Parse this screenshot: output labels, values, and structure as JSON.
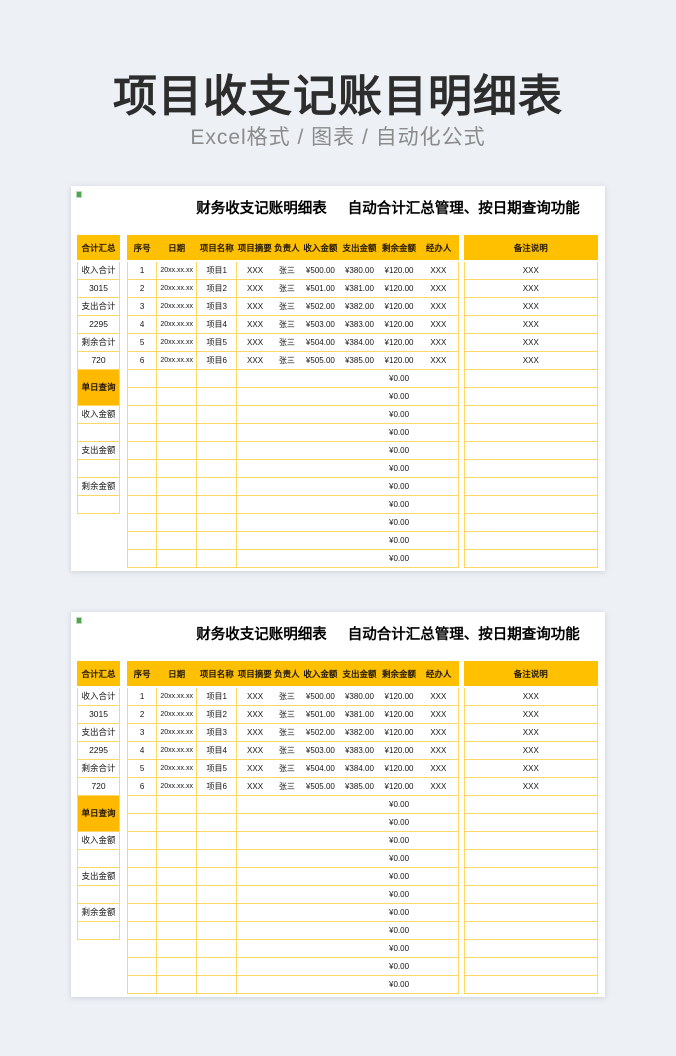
{
  "page": {
    "title": "项目收支记账目明细表",
    "subtitle": "Excel格式 / 图表 / 自动化公式",
    "background_color": "#edf0f5",
    "card_color": "#ffffff",
    "accent_color": "#ffc000",
    "highlight_color": "#ffb900",
    "grid_color": "#ffd863"
  },
  "sheet": {
    "header_title_main": "财务收支记账明细表",
    "header_title_sub": "自动合计汇总管理、按日期查询功能",
    "summary": {
      "header": "合计汇总",
      "income_label": "收入合计",
      "income_value": "3015",
      "expense_label": "支出合计",
      "expense_value": "2295",
      "balance_label": "剩余合计",
      "balance_value": "720",
      "day_query_label": "单日查询",
      "query_labels": [
        "收入金额",
        "",
        "支出金额",
        "",
        "剩余金额",
        ""
      ]
    },
    "columns": [
      "序号",
      "日期",
      "项目名称",
      "项目摘要",
      "负责人",
      "收入金额",
      "支出金额",
      "剩余金额",
      "经办人"
    ],
    "notes_column": "备注说明",
    "data_rows": [
      {
        "no": "1",
        "date": "20xx.xx.xx",
        "name": "项目1",
        "summary": "XXX",
        "owner": "张三",
        "income": "¥500.00",
        "expense": "¥380.00",
        "balance": "¥120.00",
        "handler": "XXX",
        "notes": "XXX"
      },
      {
        "no": "2",
        "date": "20xx.xx.xx",
        "name": "项目2",
        "summary": "XXX",
        "owner": "张三",
        "income": "¥501.00",
        "expense": "¥381.00",
        "balance": "¥120.00",
        "handler": "XXX",
        "notes": "XXX"
      },
      {
        "no": "3",
        "date": "20xx.xx.xx",
        "name": "项目3",
        "summary": "XXX",
        "owner": "张三",
        "income": "¥502.00",
        "expense": "¥382.00",
        "balance": "¥120.00",
        "handler": "XXX",
        "notes": "XXX"
      },
      {
        "no": "4",
        "date": "20xx.xx.xx",
        "name": "项目4",
        "summary": "XXX",
        "owner": "张三",
        "income": "¥503.00",
        "expense": "¥383.00",
        "balance": "¥120.00",
        "handler": "XXX",
        "notes": "XXX"
      },
      {
        "no": "5",
        "date": "20xx.xx.xx",
        "name": "项目5",
        "summary": "XXX",
        "owner": "张三",
        "income": "¥504.00",
        "expense": "¥384.00",
        "balance": "¥120.00",
        "handler": "XXX",
        "notes": "XXX"
      },
      {
        "no": "6",
        "date": "20xx.xx.xx",
        "name": "项目6",
        "summary": "XXX",
        "owner": "张三",
        "income": "¥505.00",
        "expense": "¥385.00",
        "balance": "¥120.00",
        "handler": "XXX",
        "notes": "XXX"
      }
    ],
    "empty_rows": {
      "count": 11,
      "balance_value": "¥0.00"
    }
  },
  "card_count": 2
}
